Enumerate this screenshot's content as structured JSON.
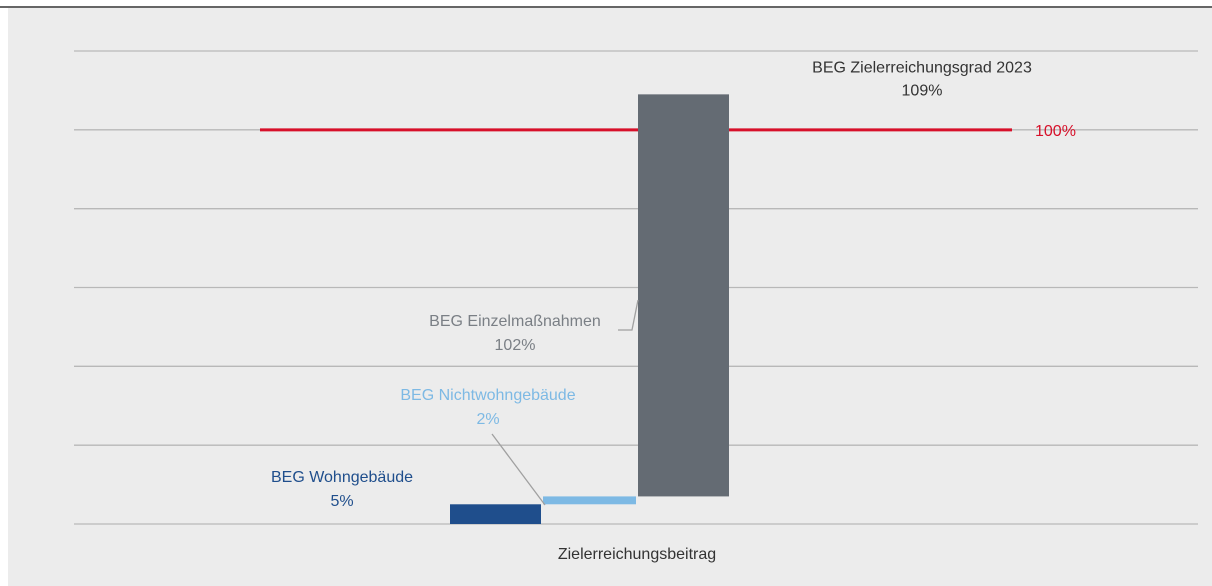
{
  "chart_data": {
    "type": "waterfall",
    "categories": [
      "Zielerreichungsbeitrag"
    ],
    "series": [
      {
        "name": "BEG Wohngebäude",
        "color": "#1f4e8c",
        "values": [
          5
        ],
        "value_labels": [
          "5%"
        ]
      },
      {
        "name": "BEG Nichtwohngebäude",
        "color": "#7db9e4",
        "values": [
          2
        ],
        "value_labels": [
          "2%"
        ]
      },
      {
        "name": "BEG Einzelmaßnahmen",
        "color": "#646b73",
        "values": [
          102
        ],
        "value_labels": [
          "102%"
        ]
      }
    ],
    "total": {
      "name": "BEG Zielerreichungsgrad 2023",
      "value": 109,
      "value_label": "109%"
    },
    "reference_line": {
      "value": 100,
      "label": "100%",
      "color": "#d7102a"
    },
    "ylim": [
      0,
      120
    ],
    "yticks": [
      0,
      20,
      40,
      60,
      80,
      100,
      120
    ],
    "grid": true
  }
}
